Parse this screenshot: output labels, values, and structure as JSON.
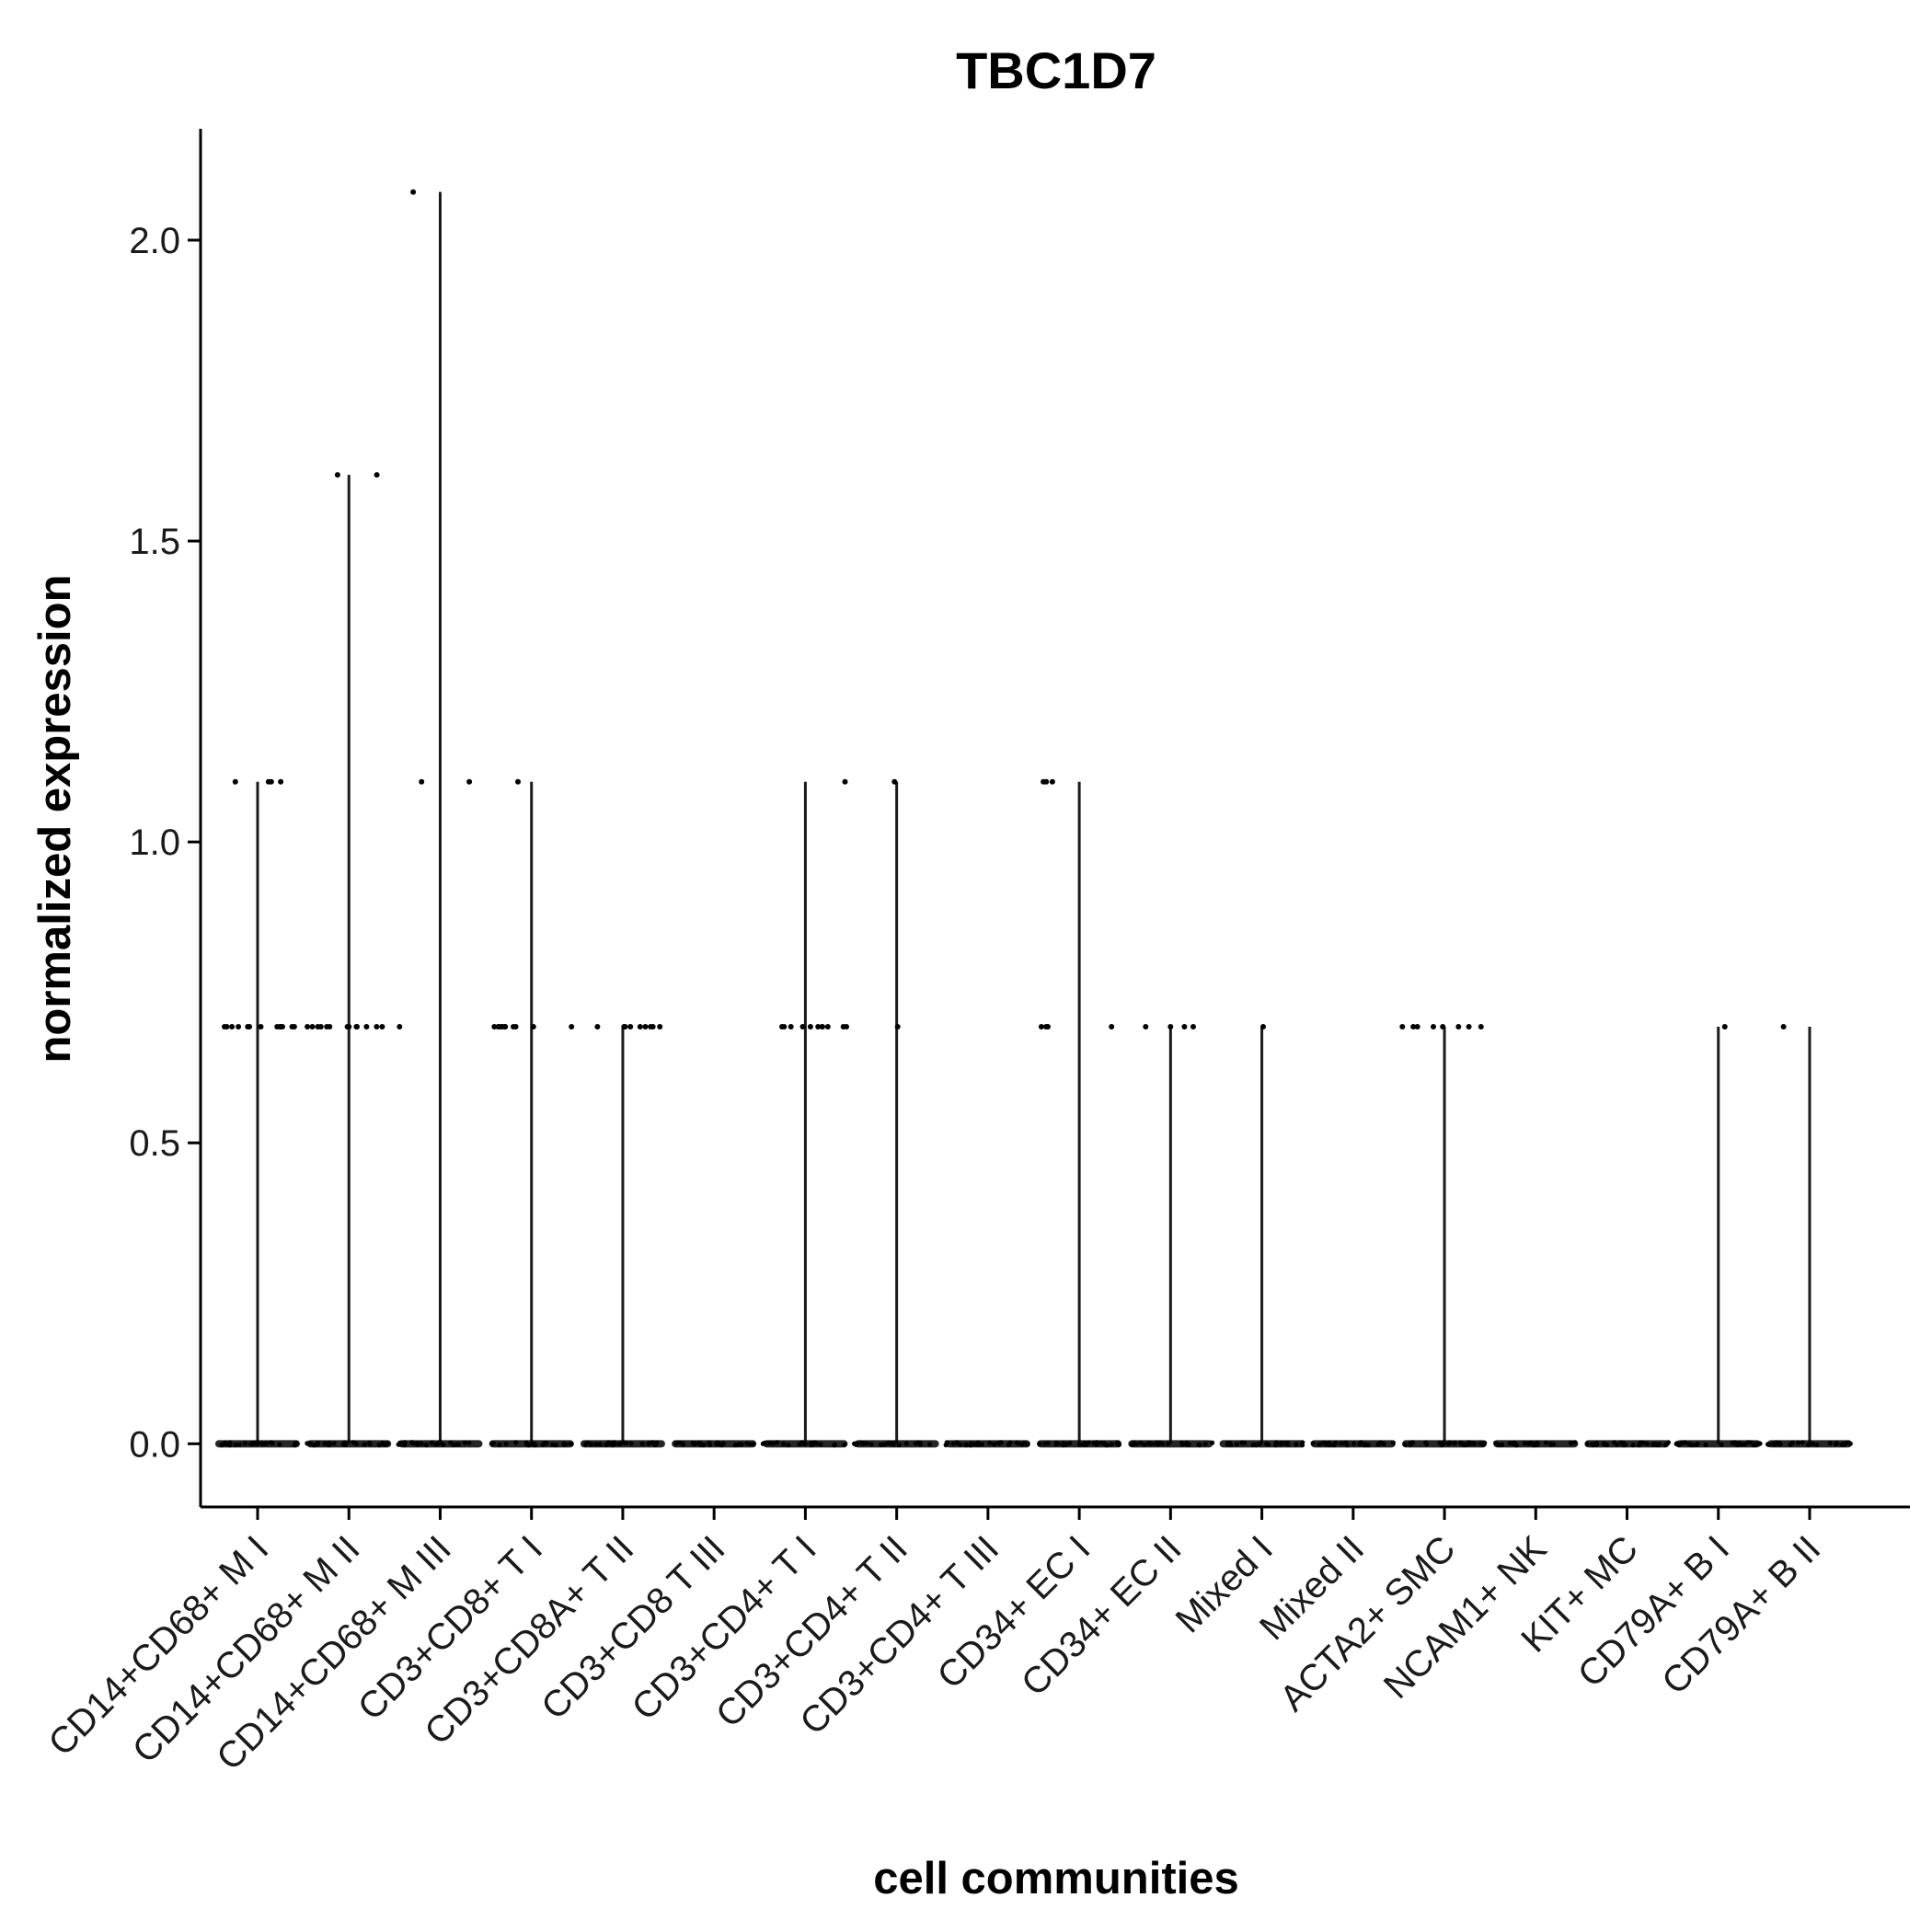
{
  "chart_data": {
    "type": "scatter",
    "subtype": "violin",
    "title": "TBC1D7",
    "xlabel": "cell communities",
    "ylabel": "normalized expression",
    "ylim": [
      -0.105,
      2.185
    ],
    "yticks": [
      0.0,
      0.5,
      1.0,
      1.5,
      2.0
    ],
    "ytick_labels": [
      "0.0",
      "0.5",
      "1.0",
      "1.5",
      "2.0"
    ],
    "grid": false,
    "legend": "none",
    "colors": {
      "violin": "#1a1a1a",
      "points": "#000000",
      "axis": "#000000"
    },
    "categories": [
      "CD14+CD68+ M I",
      "CD14+CD68+ M II",
      "CD14+CD68+ M III",
      "CD3+CD8+ T I",
      "CD3+CD8A+ T II",
      "CD3+CD8 T III",
      "CD3+CD4+ T I",
      "CD3+CD4+ T II",
      "CD3+CD4+ T III",
      "CD34+ EC I",
      "CD34+ EC II",
      "Mixed I",
      "Mixed II",
      "ACTA2+ SMC",
      "NCAM1+ NK",
      "KIT+ MC",
      "CD79A+ B I",
      "CD79A+ B II"
    ],
    "violin_max": [
      1.1,
      1.61,
      2.08,
      1.1,
      0.693,
      0.0,
      1.1,
      1.1,
      0.0,
      1.1,
      0.693,
      0.693,
      0.0,
      0.693,
      0.0,
      0.0,
      0.693,
      0.693
    ],
    "points": [
      {
        "category": "CD14+CD68+ M I",
        "values": [
          1.1,
          1.1,
          1.1,
          1.1,
          0.693,
          0.693,
          0.693,
          0.693,
          0.693,
          0.693,
          0.693,
          0.693,
          0.693,
          0.693,
          0.693,
          0.693,
          0.693,
          0.693
        ]
      },
      {
        "category": "CD14+CD68+ M II",
        "values": [
          1.61,
          1.61,
          0.693,
          0.693,
          0.693,
          0.693,
          0.693,
          0.693,
          0.693,
          0.693,
          0.693,
          0.693,
          0.693,
          0.693,
          0.693
        ]
      },
      {
        "category": "CD14+CD68+ M III",
        "values": [
          2.08,
          1.1,
          1.1,
          0.693
        ]
      },
      {
        "category": "CD3+CD8+ T I",
        "values": [
          1.1,
          0.693,
          0.693,
          0.693,
          0.693,
          0.693,
          0.693,
          0.693,
          0.693,
          0.693,
          0.693,
          0.693
        ]
      },
      {
        "category": "CD3+CD8A+ T II",
        "values": [
          0.693,
          0.693,
          0.693,
          0.693,
          0.693,
          0.693,
          0.693,
          0.693,
          0.693
        ]
      },
      {
        "category": "CD3+CD8 T III",
        "values": []
      },
      {
        "category": "CD3+CD4+ T I",
        "values": [
          1.1,
          0.693,
          0.693,
          0.693,
          0.693,
          0.693,
          0.693,
          0.693,
          0.693,
          0.693,
          0.693,
          0.693
        ]
      },
      {
        "category": "CD3+CD4+ T II",
        "values": [
          1.1,
          0.693
        ]
      },
      {
        "category": "CD3+CD4+ T III",
        "values": []
      },
      {
        "category": "CD34+ EC I",
        "values": [
          1.1,
          1.1,
          1.1,
          0.693,
          0.693,
          0.693,
          0.693
        ]
      },
      {
        "category": "CD34+ EC II",
        "values": [
          0.693,
          0.693,
          0.693,
          0.693
        ]
      },
      {
        "category": "Mixed I",
        "values": [
          0.693
        ]
      },
      {
        "category": "Mixed II",
        "values": []
      },
      {
        "category": "ACTA2+ SMC",
        "values": [
          0.693,
          0.693,
          0.693,
          0.693,
          0.693,
          0.693,
          0.693,
          0.693
        ]
      },
      {
        "category": "NCAM1+ NK",
        "values": []
      },
      {
        "category": "KIT+ MC",
        "values": []
      },
      {
        "category": "CD79A+ B I",
        "values": [
          0.693
        ]
      },
      {
        "category": "CD79A+ B II",
        "values": [
          0.693
        ]
      }
    ]
  }
}
